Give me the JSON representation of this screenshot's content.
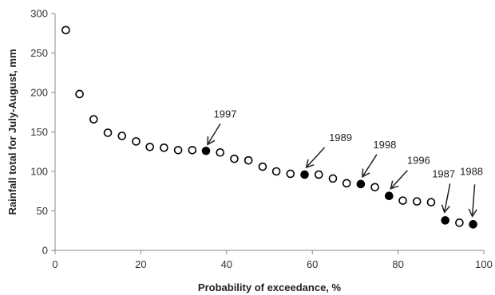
{
  "chart_data": {
    "type": "scatter",
    "title": "",
    "xlabel": "Probability of exceedance, %",
    "ylabel": "Rainfall total for July-August, mm",
    "xlim": [
      0,
      100
    ],
    "ylim": [
      0,
      300
    ],
    "x_ticks": [
      0,
      20,
      40,
      60,
      80,
      100
    ],
    "y_ticks": [
      0,
      50,
      100,
      150,
      200,
      250,
      300
    ],
    "grid": false,
    "legend": "none",
    "marker_open_color": "#ffffff",
    "marker_filled_color": "#000000",
    "series": [
      {
        "marker": "open-circle",
        "x": [
          2.5,
          5.7,
          9.0,
          12.3,
          15.6,
          18.9,
          22.1,
          25.4,
          28.7,
          32.0,
          38.5,
          41.8,
          45.1,
          48.4,
          51.6,
          54.9,
          61.5,
          64.8,
          68.0,
          74.6,
          81.1,
          84.4,
          87.7,
          94.3
        ],
        "y": [
          279,
          198,
          166,
          149,
          145,
          138,
          131,
          130,
          127,
          127,
          124,
          116,
          114,
          106,
          100,
          97,
          96,
          91,
          85,
          80,
          63,
          62,
          61,
          35
        ]
      },
      {
        "marker": "filled-circle",
        "x": [
          35.2,
          58.2,
          71.3,
          77.9,
          91.0,
          97.5
        ],
        "y": [
          126,
          96,
          84,
          69,
          38,
          33
        ]
      }
    ],
    "annotations": [
      {
        "text": "1997",
        "x": 35.2,
        "y": 126
      },
      {
        "text": "1989",
        "x": 58.2,
        "y": 96
      },
      {
        "text": "1998",
        "x": 71.3,
        "y": 84
      },
      {
        "text": "1996",
        "x": 77.9,
        "y": 69
      },
      {
        "text": "1987",
        "x": 91.0,
        "y": 38
      },
      {
        "text": "1988",
        "x": 97.5,
        "y": 33
      }
    ]
  }
}
